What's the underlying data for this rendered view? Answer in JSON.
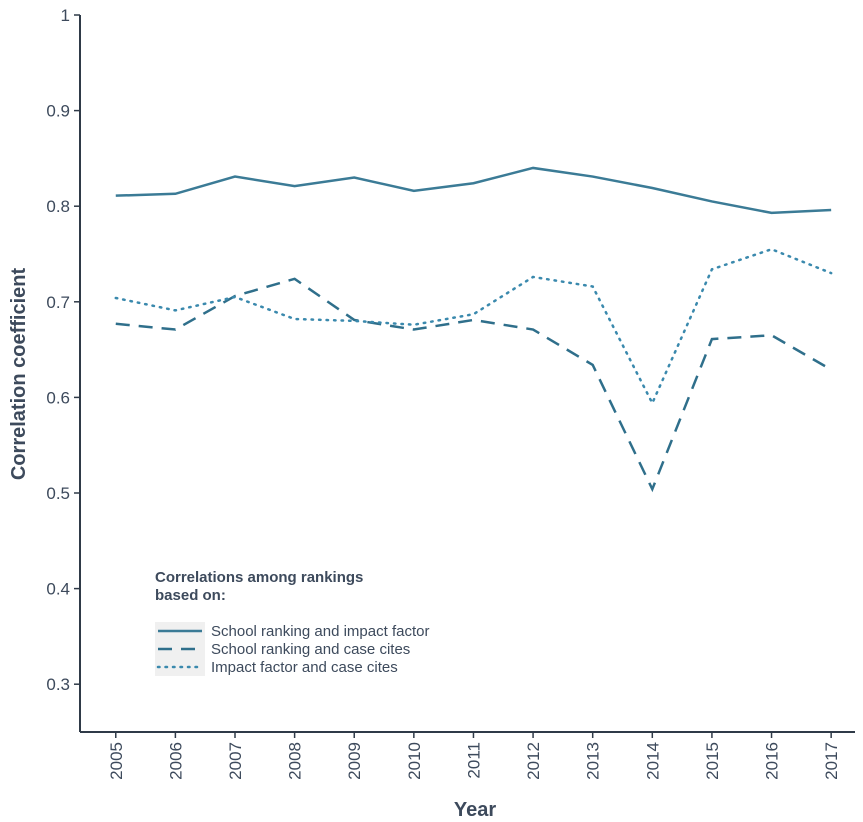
{
  "chart_data": {
    "type": "line",
    "x": [
      2005,
      2006,
      2007,
      2008,
      2009,
      2010,
      2011,
      2012,
      2013,
      2014,
      2015,
      2016,
      2017
    ],
    "xlim": [
      2004.4,
      2017.4
    ],
    "xticks": [
      2005,
      2006,
      2007,
      2008,
      2009,
      2010,
      2011,
      2012,
      2013,
      2014,
      2015,
      2016,
      2017
    ],
    "ylim": [
      0.25,
      1
    ],
    "yticks": [
      0.3,
      0.4,
      0.5,
      0.6,
      0.7,
      0.8,
      0.9,
      1
    ],
    "xlabel": "Year",
    "ylabel": "Correlation coefficient",
    "legend_title": [
      "Correlations among rankings",
      "based on:"
    ],
    "legend_position": "lower left",
    "series": [
      {
        "name": "School ranking and impact factor",
        "color": "#3b7b96",
        "style": "solid",
        "values": [
          0.811,
          0.813,
          0.831,
          0.821,
          0.83,
          0.816,
          0.824,
          0.84,
          0.831,
          0.819,
          0.805,
          0.793,
          0.796
        ]
      },
      {
        "name": "School ranking and case cites",
        "color": "#2f6f8b",
        "style": "dashed",
        "values": [
          0.677,
          0.671,
          0.706,
          0.724,
          0.681,
          0.671,
          0.681,
          0.671,
          0.634,
          0.504,
          0.661,
          0.665,
          0.629
        ]
      },
      {
        "name": "Impact factor and case cites",
        "color": "#3a89ad",
        "style": "dotted",
        "values": [
          0.704,
          0.691,
          0.705,
          0.682,
          0.68,
          0.676,
          0.687,
          0.726,
          0.716,
          0.594,
          0.734,
          0.755,
          0.73
        ]
      }
    ]
  }
}
